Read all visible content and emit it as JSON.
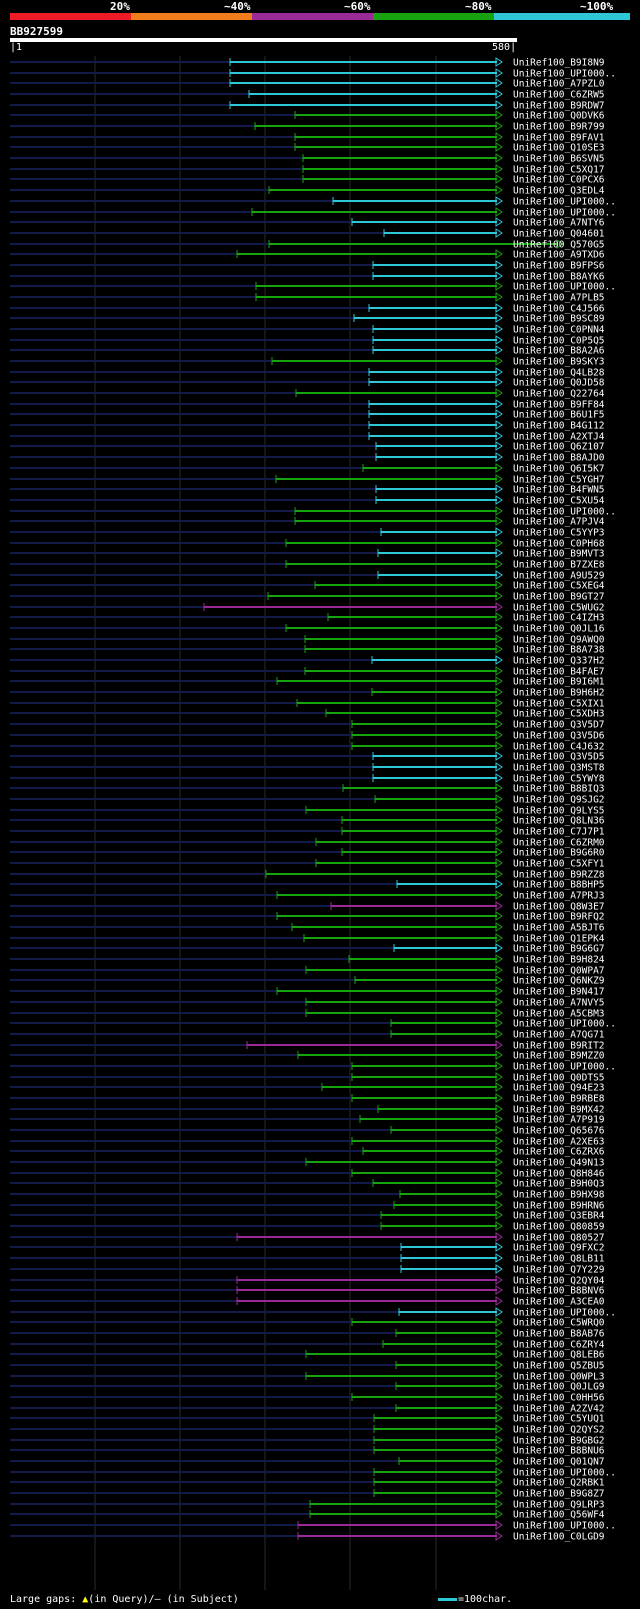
{
  "legend": {
    "labels": [
      "20%",
      "~40%",
      "~60%",
      "~80%",
      "~100%"
    ],
    "colors": [
      "#ed1c24",
      "#f07c1b",
      "#9b2a97",
      "#17a20f",
      "#2ec7d8"
    ]
  },
  "query": {
    "name": "BB927599",
    "start": "1",
    "end": "580"
  },
  "footer": {
    "gap_text_prefix": "Large gaps:",
    "gap_query": "(in Query)",
    "gap_subject": "/— (in Subject)",
    "scale_text": "=100char."
  },
  "hits": [
    {
      "id": "UniRef100_B9I8N9",
      "start": 230,
      "color": "cyan"
    },
    {
      "id": "UniRef100_UPI000..",
      "start": 230,
      "color": "cyan"
    },
    {
      "id": "UniRef100_A7PZL0",
      "start": 230,
      "color": "cyan"
    },
    {
      "id": "UniRef100_C6ZRW5",
      "start": 249,
      "color": "cyan"
    },
    {
      "id": "UniRef100_B9RDW7",
      "start": 230,
      "color": "cyan"
    },
    {
      "id": "UniRef100_Q0DVK6",
      "start": 295,
      "color": "green"
    },
    {
      "id": "UniRef100_B9R799",
      "start": 255,
      "color": "green"
    },
    {
      "id": "UniRef100_B9FAV1",
      "start": 295,
      "color": "green"
    },
    {
      "id": "UniRef100_Q10SE3",
      "start": 295,
      "color": "green"
    },
    {
      "id": "UniRef100_B6SVN5",
      "start": 303,
      "color": "green"
    },
    {
      "id": "UniRef100_C5XQ17",
      "start": 303,
      "color": "green"
    },
    {
      "id": "UniRef100_C0PCX6",
      "start": 303,
      "color": "green"
    },
    {
      "id": "UniRef100_Q3EDL4",
      "start": 269,
      "color": "green"
    },
    {
      "id": "UniRef100_UPI000..",
      "start": 333,
      "color": "cyan"
    },
    {
      "id": "UniRef100_UPI000..",
      "start": 252,
      "color": "green"
    },
    {
      "id": "UniRef100_A7NTY6",
      "start": 352,
      "color": "cyan"
    },
    {
      "id": "UniRef100_Q04601",
      "start": 384,
      "color": "cyan"
    },
    {
      "id": "UniRef100_Q570G5",
      "start": 269,
      "color": "green",
      "end": 563
    },
    {
      "id": "UniRef100_A9TXD6",
      "start": 237,
      "color": "green"
    },
    {
      "id": "UniRef100_B9FPS6",
      "start": 373,
      "color": "cyan"
    },
    {
      "id": "UniRef100_B8AYK6",
      "start": 373,
      "color": "cyan"
    },
    {
      "id": "UniRef100_UPI000..",
      "start": 256,
      "color": "green"
    },
    {
      "id": "UniRef100_A7PLB5",
      "start": 256,
      "color": "green"
    },
    {
      "id": "UniRef100_C4J566",
      "start": 369,
      "color": "cyan"
    },
    {
      "id": "UniRef100_B9SC89",
      "start": 354,
      "color": "cyan"
    },
    {
      "id": "UniRef100_C0PNN4",
      "start": 373,
      "color": "cyan"
    },
    {
      "id": "UniRef100_C0P5Q5",
      "start": 373,
      "color": "cyan"
    },
    {
      "id": "UniRef100_B8A2A6",
      "start": 373,
      "color": "cyan"
    },
    {
      "id": "UniRef100_B9SKY3",
      "start": 272,
      "color": "green"
    },
    {
      "id": "UniRef100_Q4LB28",
      "start": 369,
      "color": "cyan"
    },
    {
      "id": "UniRef100_Q0JD58",
      "start": 369,
      "color": "cyan"
    },
    {
      "id": "UniRef100_Q22764",
      "start": 296,
      "color": "green"
    },
    {
      "id": "UniRef100_B9FF84",
      "start": 369,
      "color": "cyan"
    },
    {
      "id": "UniRef100_B6U1F5",
      "start": 369,
      "color": "cyan"
    },
    {
      "id": "UniRef100_B4G112",
      "start": 369,
      "color": "cyan"
    },
    {
      "id": "UniRef100_A2XTJ4",
      "start": 369,
      "color": "cyan"
    },
    {
      "id": "UniRef100_Q6Z107",
      "start": 376,
      "color": "cyan"
    },
    {
      "id": "UniRef100_B8AJD0",
      "start": 376,
      "color": "cyan"
    },
    {
      "id": "UniRef100_Q6I5K7",
      "start": 363,
      "color": "green"
    },
    {
      "id": "UniRef100_C5YGH7",
      "start": 276,
      "color": "green"
    },
    {
      "id": "UniRef100_B4FWN5",
      "start": 376,
      "color": "cyan"
    },
    {
      "id": "UniRef100_C5XU54",
      "start": 376,
      "color": "cyan"
    },
    {
      "id": "UniRef100_UPI000..",
      "start": 295,
      "color": "green"
    },
    {
      "id": "UniRef100_A7PJV4",
      "start": 295,
      "color": "green"
    },
    {
      "id": "UniRef100_C5YYP3",
      "start": 381,
      "color": "cyan"
    },
    {
      "id": "UniRef100_C0PH68",
      "start": 286,
      "color": "green"
    },
    {
      "id": "UniRef100_B9MVT3",
      "start": 378,
      "color": "cyan"
    },
    {
      "id": "UniRef100_B7ZXE8",
      "start": 286,
      "color": "green"
    },
    {
      "id": "UniRef100_A9U529",
      "start": 378,
      "color": "cyan"
    },
    {
      "id": "UniRef100_C5XEG4",
      "start": 315,
      "color": "green"
    },
    {
      "id": "UniRef100_B9GT27",
      "start": 268,
      "color": "green"
    },
    {
      "id": "UniRef100_C5WUG2",
      "start": 204,
      "color": "magenta"
    },
    {
      "id": "UniRef100_C4IZH3",
      "start": 328,
      "color": "green"
    },
    {
      "id": "UniRef100_Q0JL16",
      "start": 286,
      "color": "green"
    },
    {
      "id": "UniRef100_Q9AWQ0",
      "start": 305,
      "color": "green"
    },
    {
      "id": "UniRef100_B8A738",
      "start": 305,
      "color": "green"
    },
    {
      "id": "UniRef100_Q337H2",
      "start": 372,
      "color": "cyan"
    },
    {
      "id": "UniRef100_B4FAE7",
      "start": 305,
      "color": "green"
    },
    {
      "id": "UniRef100_B9I6M1",
      "start": 277,
      "color": "green"
    },
    {
      "id": "UniRef100_B9H6H2",
      "start": 372,
      "color": "green"
    },
    {
      "id": "UniRef100_C5XIX1",
      "start": 297,
      "color": "green"
    },
    {
      "id": "UniRef100_C5XDH3",
      "start": 326,
      "color": "green"
    },
    {
      "id": "UniRef100_Q3V5D7",
      "start": 352,
      "color": "green"
    },
    {
      "id": "UniRef100_Q3V5D6",
      "start": 352,
      "color": "green"
    },
    {
      "id": "UniRef100_C4J632",
      "start": 352,
      "color": "green"
    },
    {
      "id": "UniRef100_Q3V5D5",
      "start": 373,
      "color": "cyan"
    },
    {
      "id": "UniRef100_Q3MST8",
      "start": 373,
      "color": "cyan"
    },
    {
      "id": "UniRef100_C5YWY8",
      "start": 373,
      "color": "cyan"
    },
    {
      "id": "UniRef100_B8BIQ3",
      "start": 343,
      "color": "green"
    },
    {
      "id": "UniRef100_Q9SJG2",
      "start": 375,
      "color": "green"
    },
    {
      "id": "UniRef100_Q9LYS5",
      "start": 306,
      "color": "green"
    },
    {
      "id": "UniRef100_Q8LN36",
      "start": 342,
      "color": "green"
    },
    {
      "id": "UniRef100_C7J7P1",
      "start": 342,
      "color": "green"
    },
    {
      "id": "UniRef100_C6ZRM0",
      "start": 316,
      "color": "green"
    },
    {
      "id": "UniRef100_B9G6R0",
      "start": 342,
      "color": "green"
    },
    {
      "id": "UniRef100_C5XFY1",
      "start": 316,
      "color": "green"
    },
    {
      "id": "UniRef100_B9RZZ8",
      "start": 266,
      "color": "green"
    },
    {
      "id": "UniRef100_B8BHP5",
      "start": 397,
      "color": "cyan"
    },
    {
      "id": "UniRef100_A7PRJ3",
      "start": 277,
      "color": "green"
    },
    {
      "id": "UniRef100_Q8W3E7",
      "start": 331,
      "color": "magenta"
    },
    {
      "id": "UniRef100_B9RFQ2",
      "start": 277,
      "color": "green"
    },
    {
      "id": "UniRef100_A5BJT6",
      "start": 292,
      "color": "green"
    },
    {
      "id": "UniRef100_Q1EPK4",
      "start": 304,
      "color": "green"
    },
    {
      "id": "UniRef100_B9G6G7",
      "start": 394,
      "color": "cyan"
    },
    {
      "id": "UniRef100_B9H824",
      "start": 349,
      "color": "green"
    },
    {
      "id": "UniRef100_Q0WPA7",
      "start": 306,
      "color": "green"
    },
    {
      "id": "UniRef100_Q6NKZ9",
      "start": 355,
      "color": "green"
    },
    {
      "id": "UniRef100_B9N417",
      "start": 277,
      "color": "green"
    },
    {
      "id": "UniRef100_A7NVY5",
      "start": 306,
      "color": "green"
    },
    {
      "id": "UniRef100_A5CBM3",
      "start": 306,
      "color": "green"
    },
    {
      "id": "UniRef100_UPI000..",
      "start": 391,
      "color": "green"
    },
    {
      "id": "UniRef100_A7QG71",
      "start": 391,
      "color": "green"
    },
    {
      "id": "UniRef100_B9RIT2",
      "start": 247,
      "color": "magenta"
    },
    {
      "id": "UniRef100_B9MZZ0",
      "start": 298,
      "color": "green"
    },
    {
      "id": "UniRef100_UPI000..",
      "start": 352,
      "color": "green"
    },
    {
      "id": "UniRef100_Q0DTS5",
      "start": 352,
      "color": "green"
    },
    {
      "id": "UniRef100_Q94E23",
      "start": 322,
      "color": "green"
    },
    {
      "id": "UniRef100_B9RBE8",
      "start": 352,
      "color": "green"
    },
    {
      "id": "UniRef100_B9MX42",
      "start": 378,
      "color": "green"
    },
    {
      "id": "UniRef100_A7P919",
      "start": 360,
      "color": "green"
    },
    {
      "id": "UniRef100_Q65676",
      "start": 391,
      "color": "green"
    },
    {
      "id": "UniRef100_A2XE63",
      "start": 352,
      "color": "green"
    },
    {
      "id": "UniRef100_C6ZRX6",
      "start": 363,
      "color": "green"
    },
    {
      "id": "UniRef100_Q49N13",
      "start": 306,
      "color": "green"
    },
    {
      "id": "UniRef100_Q8H846",
      "start": 352,
      "color": "green"
    },
    {
      "id": "UniRef100_B9H0Q3",
      "start": 373,
      "color": "green"
    },
    {
      "id": "UniRef100_B9HX98",
      "start": 400,
      "color": "green"
    },
    {
      "id": "UniRef100_B9HRN6",
      "start": 394,
      "color": "green"
    },
    {
      "id": "UniRef100_Q3EBR4",
      "start": 381,
      "color": "green"
    },
    {
      "id": "UniRef100_Q80859",
      "start": 381,
      "color": "green"
    },
    {
      "id": "UniRef100_Q80527",
      "start": 237,
      "color": "magenta"
    },
    {
      "id": "UniRef100_Q9FXC2",
      "start": 401,
      "color": "cyan"
    },
    {
      "id": "UniRef100_Q8LB11",
      "start": 401,
      "color": "cyan"
    },
    {
      "id": "UniRef100_Q7Y229",
      "start": 401,
      "color": "cyan"
    },
    {
      "id": "UniRef100_Q2QY04",
      "start": 237,
      "color": "magenta"
    },
    {
      "id": "UniRef100_B8BNV6",
      "start": 237,
      "color": "magenta"
    },
    {
      "id": "UniRef100_A3CEA0",
      "start": 237,
      "color": "magenta"
    },
    {
      "id": "UniRef100_UPI000..",
      "start": 399,
      "color": "cyan"
    },
    {
      "id": "UniRef100_C5WRQ0",
      "start": 352,
      "color": "green"
    },
    {
      "id": "UniRef100_B8AB76",
      "start": 396,
      "color": "green"
    },
    {
      "id": "UniRef100_C6ZRY4",
      "start": 383,
      "color": "green"
    },
    {
      "id": "UniRef100_Q8LEB6",
      "start": 306,
      "color": "green"
    },
    {
      "id": "UniRef100_Q5ZBU5",
      "start": 396,
      "color": "green"
    },
    {
      "id": "UniRef100_Q0WPL3",
      "start": 306,
      "color": "green"
    },
    {
      "id": "UniRef100_Q0JLG9",
      "start": 396,
      "color": "green"
    },
    {
      "id": "UniRef100_C0HH56",
      "start": 352,
      "color": "green"
    },
    {
      "id": "UniRef100_A2ZV42",
      "start": 396,
      "color": "green"
    },
    {
      "id": "UniRef100_C5YUQ1",
      "start": 374,
      "color": "green"
    },
    {
      "id": "UniRef100_Q2QYS2",
      "start": 374,
      "color": "green"
    },
    {
      "id": "UniRef100_B9GBG2",
      "start": 374,
      "color": "green"
    },
    {
      "id": "UniRef100_B8BNU6",
      "start": 374,
      "color": "green"
    },
    {
      "id": "UniRef100_Q01QN7",
      "start": 399,
      "color": "green"
    },
    {
      "id": "UniRef100_UPI000..",
      "start": 374,
      "color": "green"
    },
    {
      "id": "UniRef100_Q2RBK1",
      "start": 374,
      "color": "green"
    },
    {
      "id": "UniRef100_B9G8Z7",
      "start": 374,
      "color": "green"
    },
    {
      "id": "UniRef100_Q9LRP3",
      "start": 310,
      "color": "green"
    },
    {
      "id": "UniRef100_Q56WF4",
      "start": 310,
      "color": "green"
    },
    {
      "id": "UniRef100_UPI000..",
      "start": 298,
      "color": "magenta"
    },
    {
      "id": "UniRef100_C0LGD9",
      "start": 298,
      "color": "magenta"
    }
  ]
}
